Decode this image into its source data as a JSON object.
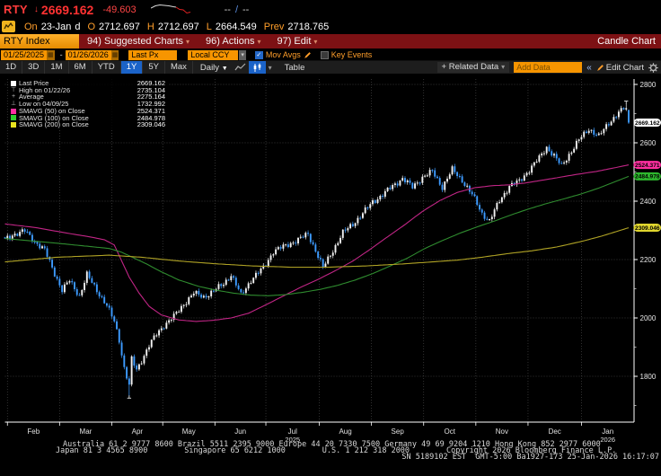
{
  "icons": {
    "caret_down": "▾",
    "check": "✓",
    "collapse": "«",
    "calendar": "▦",
    "down_arrow": "↓"
  },
  "quote_bar": {
    "ticker": "RTY",
    "last_price": "2669.162",
    "change": "-49.603",
    "spark_white": "0,6 5,3.5 10,2.5 15,3 20,3.5 25,4.5 28,5",
    "spark_red": "28,5 32,7.5 36,8 40,11.5 44,10.5",
    "range": {
      "left": "--",
      "slash": "/",
      "right": "--"
    }
  },
  "session_bar": {
    "on_label": "On",
    "date": "23-Jan",
    "freq_flag": "d",
    "o_label": "O",
    "open": "2712.697",
    "h_label": "H",
    "high": "2712.697",
    "l_label": "L",
    "low": "2664.549",
    "prev_label": "Prev",
    "prev": "2718.765"
  },
  "menu_bar": {
    "security_tab": "RTY Index",
    "items": [
      {
        "label": "94) Suggested Charts"
      },
      {
        "label": "96) Actions"
      },
      {
        "label": "97) Edit"
      }
    ],
    "right_label": "Candle Chart"
  },
  "controls": {
    "date_from": "01/25/2025",
    "separator": "-",
    "date_to": "01/26/2026",
    "price_field": "Last Px",
    "currency": "Local CCY",
    "mov_avgs_label": "Mov Avgs",
    "key_events_label": "Key Events"
  },
  "toolbar": {
    "periods": [
      "1D",
      "3D",
      "1M",
      "6M",
      "YTD",
      "1Y",
      "5Y",
      "Max"
    ],
    "active_period": "1Y",
    "frequency": "Daily",
    "table_label": "Table",
    "related_data": "+ Related Data",
    "add_data_placeholder": "Add Data",
    "edit_chart": "Edit Chart"
  },
  "legend": {
    "rows": [
      {
        "marker": "square",
        "color": "#ffffff",
        "label": "Last Price",
        "value": "2669.162"
      },
      {
        "marker": "glyph",
        "glyph": "⊤",
        "label": "High on 01/22/26",
        "value": "2735.104"
      },
      {
        "marker": "glyph",
        "glyph": "+",
        "label": "Average",
        "value": "2275.164"
      },
      {
        "marker": "glyph",
        "glyph": "⊥",
        "label": "Low on 04/09/25",
        "value": "1732.992"
      },
      {
        "marker": "square",
        "color": "#ff2fa0",
        "label": "SMAVG (50)  on Close",
        "value": "2524.371"
      },
      {
        "marker": "square",
        "color": "#2fd02f",
        "label": "SMAVG (100)  on Close",
        "value": "2484.978"
      },
      {
        "marker": "square",
        "color": "#e8e420",
        "label": "SMAVG (200)  on Close",
        "value": "2309.046"
      }
    ]
  },
  "chart_data": {
    "type": "candlestick",
    "title": "RTY Index 1Y Daily Candle Chart",
    "x_range": [
      "01/25/2025",
      "01/26/2026"
    ],
    "x_axis": {
      "labels": [
        {
          "text": "Feb"
        },
        {
          "text": "Mar"
        },
        {
          "text": "Apr"
        },
        {
          "text": "May"
        },
        {
          "text": "Jun"
        },
        {
          "text": "Jul",
          "year": "2025"
        },
        {
          "text": "Aug"
        },
        {
          "text": "Sep"
        },
        {
          "text": "Oct"
        },
        {
          "text": "Nov"
        },
        {
          "text": "Dec"
        },
        {
          "text": "Jan",
          "year": "2026"
        }
      ],
      "month_start_days": [
        1,
        22,
        43,
        63.5,
        84.5,
        105,
        126.5,
        147.5,
        168.5,
        189.5,
        210.5,
        232
      ]
    },
    "y_axis": {
      "major_ticks": [
        1800,
        2000,
        2200,
        2400,
        2600,
        2800
      ],
      "minor_ticks": [
        1700,
        1900,
        2100,
        2300,
        2500,
        2700
      ],
      "visible_range": [
        1643,
        2820
      ]
    },
    "stats": {
      "last_price": 2669.162,
      "high": {
        "date": "01/22/26",
        "value": 2735.104
      },
      "average": 2275.164,
      "low": {
        "date": "04/09/25",
        "value": 1732.992
      },
      "smavg50": 2524.371,
      "smavg100": 2484.978,
      "smavg200": 2309.046
    },
    "days": 252,
    "close_anchors": [
      [
        0,
        2268
      ],
      [
        3,
        2285
      ],
      [
        8,
        2298
      ],
      [
        12,
        2262
      ],
      [
        16,
        2232
      ],
      [
        20,
        2152
      ],
      [
        23,
        2095
      ],
      [
        26,
        2128
      ],
      [
        30,
        2075
      ],
      [
        33,
        2148
      ],
      [
        37,
        2095
      ],
      [
        41,
        2042
      ],
      [
        44,
        1988
      ],
      [
        46,
        1925
      ],
      [
        48,
        1828
      ],
      [
        50,
        1768
      ],
      [
        51,
        1858
      ],
      [
        53,
        1822
      ],
      [
        56,
        1872
      ],
      [
        58,
        1905
      ],
      [
        61,
        1945
      ],
      [
        64,
        1975
      ],
      [
        68,
        2005
      ],
      [
        72,
        2048
      ],
      [
        76,
        2085
      ],
      [
        80,
        2072
      ],
      [
        84,
        2092
      ],
      [
        88,
        2118
      ],
      [
        91,
        2148
      ],
      [
        95,
        2078
      ],
      [
        99,
        2130
      ],
      [
        104,
        2172
      ],
      [
        108,
        2228
      ],
      [
        113,
        2248
      ],
      [
        118,
        2268
      ],
      [
        122,
        2288
      ],
      [
        126,
        2212
      ],
      [
        128,
        2172
      ],
      [
        132,
        2232
      ],
      [
        136,
        2292
      ],
      [
        140,
        2322
      ],
      [
        144,
        2358
      ],
      [
        148,
        2398
      ],
      [
        152,
        2422
      ],
      [
        156,
        2452
      ],
      [
        160,
        2478
      ],
      [
        164,
        2448
      ],
      [
        168,
        2482
      ],
      [
        172,
        2502
      ],
      [
        176,
        2448
      ],
      [
        180,
        2508
      ],
      [
        184,
        2472
      ],
      [
        188,
        2422
      ],
      [
        192,
        2358
      ],
      [
        195,
        2332
      ],
      [
        199,
        2402
      ],
      [
        203,
        2452
      ],
      [
        207,
        2468
      ],
      [
        211,
        2508
      ],
      [
        215,
        2548
      ],
      [
        218,
        2585
      ],
      [
        221,
        2555
      ],
      [
        224,
        2520
      ],
      [
        227,
        2560
      ],
      [
        231,
        2610
      ],
      [
        235,
        2648
      ],
      [
        239,
        2622
      ],
      [
        243,
        2668
      ],
      [
        247,
        2705
      ],
      [
        250,
        2718.765
      ],
      [
        251,
        2669.162
      ]
    ],
    "low_override": {
      "day": 50,
      "value": 1732.992
    },
    "high_override": {
      "day": 250,
      "value": 2735.104
    },
    "last_candle": {
      "open": 2712.697,
      "high": 2712.697,
      "low": 2664.549,
      "close": 2669.162
    },
    "ma_series": [
      {
        "name": "SMAVG (50) on Close",
        "color": "#c02585",
        "flag_bg": "#ff2fa0",
        "value": 2524.371,
        "anchors": [
          [
            0,
            2322
          ],
          [
            12,
            2310
          ],
          [
            24,
            2292
          ],
          [
            34,
            2278
          ],
          [
            40,
            2268
          ],
          [
            44,
            2250
          ],
          [
            47,
            2195
          ],
          [
            50,
            2140
          ],
          [
            54,
            2085
          ],
          [
            58,
            2040
          ],
          [
            63,
            2010
          ],
          [
            70,
            1993
          ],
          [
            77,
            1988
          ],
          [
            84,
            1992
          ],
          [
            91,
            2000
          ],
          [
            98,
            2016
          ],
          [
            105,
            2045
          ],
          [
            112,
            2075
          ],
          [
            119,
            2105
          ],
          [
            126,
            2132
          ],
          [
            133,
            2162
          ],
          [
            140,
            2195
          ],
          [
            147,
            2235
          ],
          [
            154,
            2278
          ],
          [
            161,
            2320
          ],
          [
            168,
            2365
          ],
          [
            175,
            2402
          ],
          [
            182,
            2430
          ],
          [
            189,
            2446
          ],
          [
            196,
            2453
          ],
          [
            203,
            2456
          ],
          [
            210,
            2463
          ],
          [
            217,
            2473
          ],
          [
            224,
            2483
          ],
          [
            231,
            2493
          ],
          [
            238,
            2502
          ],
          [
            244,
            2512
          ],
          [
            251,
            2524.371
          ]
        ]
      },
      {
        "name": "SMAVG (100) on Close",
        "color": "#2f8c2f",
        "flag_bg": "#2eb82e",
        "value": 2484.978,
        "anchors": [
          [
            0,
            2272
          ],
          [
            21,
            2256
          ],
          [
            42,
            2238
          ],
          [
            47,
            2225
          ],
          [
            52,
            2205
          ],
          [
            57,
            2185
          ],
          [
            62,
            2162
          ],
          [
            70,
            2130
          ],
          [
            78,
            2108
          ],
          [
            85,
            2095
          ],
          [
            92,
            2085
          ],
          [
            99,
            2078
          ],
          [
            106,
            2076
          ],
          [
            113,
            2080
          ],
          [
            120,
            2088
          ],
          [
            127,
            2098
          ],
          [
            134,
            2112
          ],
          [
            141,
            2130
          ],
          [
            148,
            2152
          ],
          [
            155,
            2178
          ],
          [
            162,
            2205
          ],
          [
            169,
            2238
          ],
          [
            176,
            2265
          ],
          [
            183,
            2290
          ],
          [
            190,
            2312
          ],
          [
            197,
            2332
          ],
          [
            204,
            2354
          ],
          [
            211,
            2374
          ],
          [
            218,
            2392
          ],
          [
            225,
            2408
          ],
          [
            232,
            2425
          ],
          [
            239,
            2445
          ],
          [
            245,
            2465
          ],
          [
            251,
            2484.978
          ]
        ]
      },
      {
        "name": "SMAVG (200) on Close",
        "color": "#b0a325",
        "flag_bg": "#e0d62e",
        "value": 2309.046,
        "anchors": [
          [
            0,
            2192
          ],
          [
            21,
            2208
          ],
          [
            42,
            2215
          ],
          [
            55,
            2208
          ],
          [
            70,
            2195
          ],
          [
            84,
            2186
          ],
          [
            100,
            2178
          ],
          [
            115,
            2174
          ],
          [
            130,
            2174
          ],
          [
            145,
            2178
          ],
          [
            160,
            2185
          ],
          [
            172,
            2192
          ],
          [
            182,
            2198
          ],
          [
            192,
            2208
          ],
          [
            202,
            2220
          ],
          [
            212,
            2230
          ],
          [
            222,
            2243
          ],
          [
            232,
            2262
          ],
          [
            240,
            2280
          ],
          [
            251,
            2309.046
          ]
        ]
      }
    ],
    "colors": {
      "up": "#f2f2f2",
      "down": "#3d9bff",
      "grid": "#454545",
      "axis": "#ffffff",
      "last_flag_bg": "#ffffff",
      "flag_text": "#000000"
    }
  },
  "footer": {
    "line1": "Australia 61 2 9777 8600 Brazil 5511 2395 9000 Europe 44 20 7330 7500 Germany 49 69 9204 1210 Hong Kong 852 2977 6000",
    "line2": "Japan 81 3 4565 8900        Singapore 65 6212 1000        U.S. 1 212 318 2000        Copyright 2026 Bloomberg Finance L.P.",
    "line3": "SN 5189102 EST  GMT-5:00 Ba1927-173 25-Jan-2026 16:17:07"
  }
}
